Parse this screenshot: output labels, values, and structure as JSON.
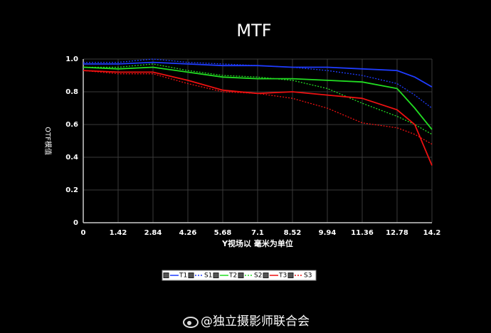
{
  "chart_data": {
    "type": "line",
    "title": "MTF",
    "x_label": "Y视场以  毫米为单位",
    "y_label": "OTF模值",
    "x": [
      0,
      1.42,
      2.84,
      4.26,
      5.68,
      7.1,
      8.52,
      9.94,
      11.36,
      12.78,
      13.5,
      14.2
    ],
    "xlim": [
      0,
      14.2
    ],
    "xticks": [
      0,
      1.42,
      2.84,
      4.26,
      5.68,
      7.1,
      8.52,
      9.94,
      11.36,
      12.78,
      14.2
    ],
    "ylim": [
      0,
      1
    ],
    "yticks": [
      0,
      0.2,
      0.4,
      0.6,
      0.8,
      {
        "value": 1,
        "label": "1.0"
      }
    ],
    "grid": true,
    "legend": "bottom",
    "series": [
      {
        "name": "T1",
        "color": "#1f3cff",
        "style": "solid",
        "values": [
          0.97,
          0.97,
          0.98,
          0.97,
          0.96,
          0.96,
          0.95,
          0.95,
          0.94,
          0.93,
          0.89,
          0.83
        ]
      },
      {
        "name": "S1",
        "color": "#1f3cff",
        "style": "dotted",
        "values": [
          0.98,
          0.98,
          1.0,
          0.98,
          0.97,
          0.96,
          0.95,
          0.93,
          0.9,
          0.85,
          0.78,
          0.7
        ]
      },
      {
        "name": "T2",
        "color": "#22dd22",
        "style": "solid",
        "values": [
          0.95,
          0.94,
          0.95,
          0.92,
          0.89,
          0.88,
          0.88,
          0.87,
          0.86,
          0.82,
          0.7,
          0.57
        ]
      },
      {
        "name": "S2",
        "color": "#22dd22",
        "style": "dotted",
        "values": [
          0.95,
          0.95,
          0.97,
          0.93,
          0.9,
          0.89,
          0.87,
          0.82,
          0.73,
          0.65,
          0.6,
          0.54
        ]
      },
      {
        "name": "T3",
        "color": "#ee1111",
        "style": "solid",
        "values": [
          0.93,
          0.92,
          0.92,
          0.87,
          0.81,
          0.79,
          0.8,
          0.78,
          0.76,
          0.69,
          0.6,
          0.35
        ]
      },
      {
        "name": "S3",
        "color": "#ee1111",
        "style": "dotted",
        "values": [
          0.93,
          0.91,
          0.91,
          0.85,
          0.8,
          0.79,
          0.76,
          0.7,
          0.61,
          0.58,
          0.54,
          0.48
        ]
      }
    ]
  },
  "watermark": "@独立摄影师联合会"
}
